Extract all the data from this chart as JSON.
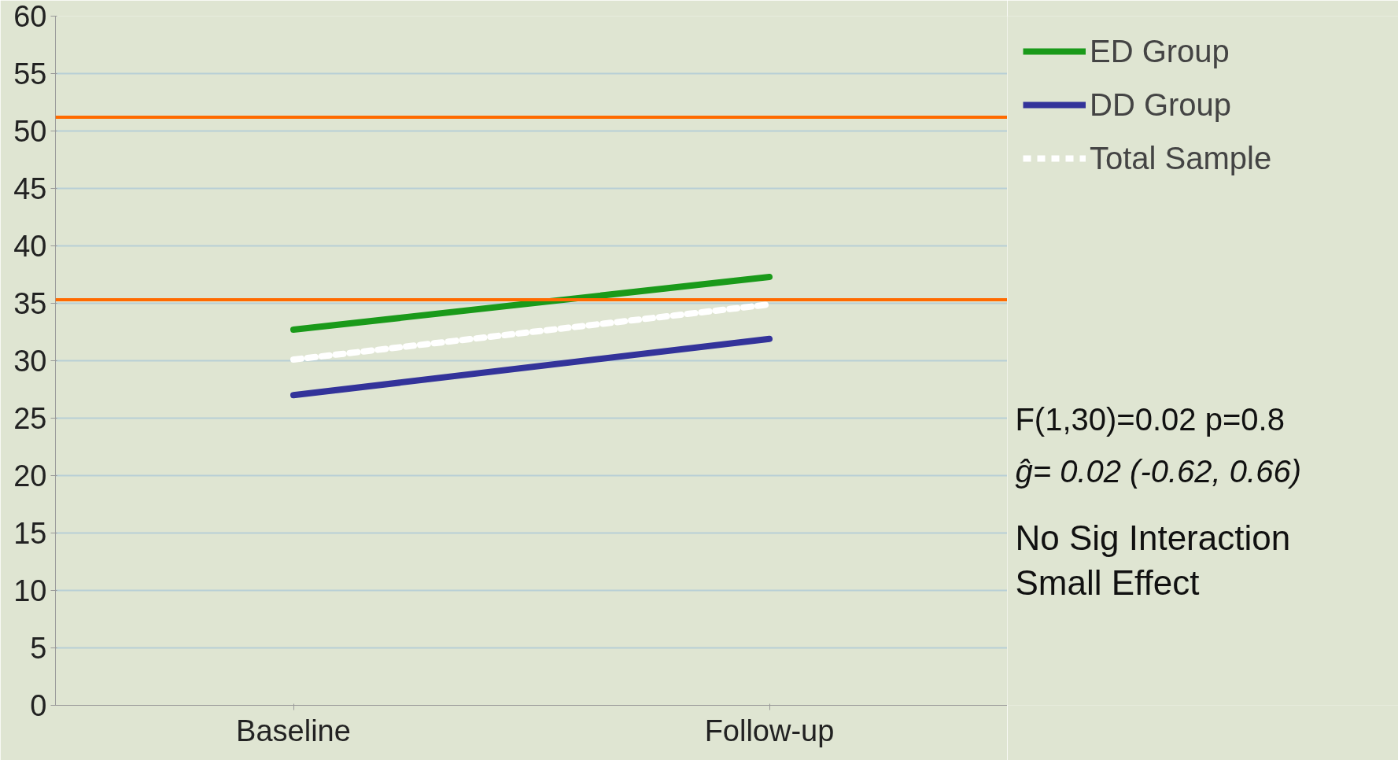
{
  "chart_data": {
    "type": "line",
    "categories": [
      "Baseline",
      "Follow-up"
    ],
    "series": [
      {
        "name": "ED Group",
        "color": "#1a9a1a",
        "values": [
          32.7,
          37.3
        ]
      },
      {
        "name": "DD Group",
        "color": "#33339a",
        "values": [
          27.0,
          31.9
        ]
      },
      {
        "name": "Total Sample",
        "color": "#ffffff",
        "values": [
          30.1,
          34.9
        ],
        "line_style": "dashed"
      }
    ],
    "ylim": [
      0,
      60
    ],
    "yticks": [
      0,
      5,
      10,
      15,
      20,
      25,
      30,
      35,
      40,
      45,
      50,
      55,
      60
    ],
    "grid": "y",
    "legend": "top right",
    "marker": "none",
    "line_style": "solid",
    "ref_lines": [
      {
        "axis": "y",
        "value": 51.2,
        "label": null,
        "color": "#ff6a00"
      },
      {
        "axis": "y",
        "value": 35.3,
        "label": null,
        "color": "#ff6a00"
      }
    ],
    "annotations": [
      "F(1,30)=0.02 p=0.8",
      "ĝ= 0.02  (-0.62, 0.66)",
      "No Sig Interaction",
      "Small Effect"
    ]
  }
}
